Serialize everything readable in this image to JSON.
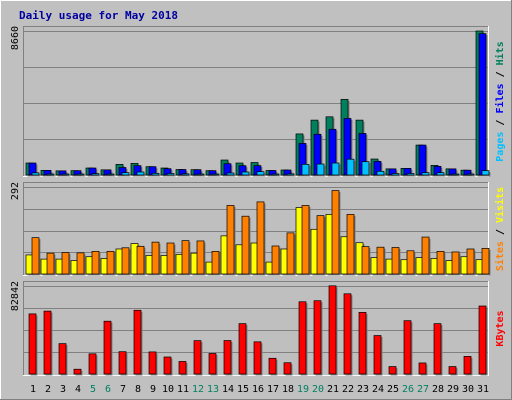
{
  "chart_data": {
    "type": "bar",
    "title": "Daily usage for May 2018",
    "categories": [
      "1",
      "2",
      "3",
      "4",
      "5",
      "6",
      "7",
      "8",
      "9",
      "10",
      "11",
      "12",
      "13",
      "14",
      "15",
      "16",
      "17",
      "18",
      "19",
      "20",
      "21",
      "22",
      "23",
      "24",
      "25",
      "26",
      "27",
      "28",
      "29",
      "30",
      "31"
    ],
    "weekend_days": [
      "5",
      "6",
      "12",
      "13",
      "19",
      "20",
      "26",
      "27"
    ],
    "colors": {
      "background": "#c0c0c0",
      "plot_area": "#bfbfbf",
      "title": "#0000a0",
      "weekday_label": "#000000",
      "weekend_label": "#008060",
      "hits": "#00805c",
      "files": "#0000ff",
      "pages": "#00c0ff",
      "visits": "#ffff00",
      "sites": "#ff8000",
      "kbytes": "#ff0000"
    },
    "panels": [
      {
        "id": "hits-files-pages",
        "max_label": "8660",
        "ylim": [
          0,
          8660
        ],
        "legend": [
          {
            "text": "Pages",
            "color": "#00c0ff"
          },
          {
            "text": " / ",
            "color": "#000000"
          },
          {
            "text": "Files",
            "color": "#0000ff"
          },
          {
            "text": " / ",
            "color": "#000000"
          },
          {
            "text": "Hits",
            "color": "#00805c"
          }
        ],
        "series": [
          {
            "name": "Hits",
            "color": "#00805c",
            "values": [
              720,
              280,
              250,
              260,
              420,
              310,
              640,
              700,
              500,
              420,
              330,
              320,
              260,
              900,
              720,
              750,
              270,
              300,
              2470,
              3300,
              3500,
              4550,
              3300,
              960,
              370,
              400,
              1800,
              580,
              370,
              290,
              8660
            ]
          },
          {
            "name": "Files",
            "color": "#0000ff",
            "values": [
              720,
              280,
              250,
              260,
              420,
              310,
              450,
              560,
              500,
              380,
              330,
              320,
              260,
              680,
              560,
              560,
              270,
              300,
              1900,
              2450,
              2750,
              3400,
              2500,
              820,
              370,
              400,
              1800,
              520,
              370,
              290,
              8500
            ]
          },
          {
            "name": "Pages",
            "color": "#00c0ff",
            "values": [
              130,
              60,
              50,
              60,
              80,
              60,
              140,
              180,
              100,
              90,
              70,
              60,
              60,
              120,
              180,
              200,
              40,
              70,
              640,
              660,
              720,
              950,
              800,
              220,
              90,
              90,
              140,
              140,
              60,
              60,
              260
            ]
          }
        ]
      },
      {
        "id": "visits-sites",
        "max_label": "292",
        "ylim": [
          0,
          292
        ],
        "legend": [
          {
            "text": "Sites",
            "color": "#ff8000"
          },
          {
            "text": " / ",
            "color": "#000000"
          },
          {
            "text": "Visits",
            "color": "#ffff00"
          }
        ],
        "series": [
          {
            "name": "Visits",
            "color": "#ffff00",
            "values": [
              64,
              50,
              50,
              45,
              58,
              52,
              84,
              102,
              62,
              62,
              66,
              70,
              40,
              128,
              98,
              104,
              40,
              84,
              223,
              150,
              200,
              125,
              105,
              55,
              50,
              48,
              55,
              52,
              45,
              58,
              48
            ]
          },
          {
            "name": "Sites",
            "color": "#ff8000",
            "values": [
              122,
              70,
              72,
              71,
              76,
              76,
              88,
              93,
              107,
              104,
              112,
              111,
              76,
              230,
              194,
              242,
              94,
              138,
              230,
              196,
              280,
              200,
              92,
              90,
              89,
              78,
              124,
              76,
              74,
              84,
              86
            ]
          }
        ]
      },
      {
        "id": "kbytes",
        "max_label": "82842",
        "ylim": [
          0,
          82842
        ],
        "legend": [
          {
            "text": "KBytes",
            "color": "#ff0000"
          }
        ],
        "series": [
          {
            "name": "KBytes",
            "color": "#ff0000",
            "values": [
              56600,
              59200,
              28600,
              4500,
              19000,
              49700,
              21000,
              60000,
              20800,
              16000,
              11800,
              31400,
              19300,
              31500,
              47400,
              30300,
              14800,
              10600,
              68000,
              69000,
              83000,
              75500,
              58000,
              36200,
              7000,
              50200,
              10400,
              47400,
              7000,
              16600,
              64000
            ]
          }
        ]
      }
    ]
  }
}
